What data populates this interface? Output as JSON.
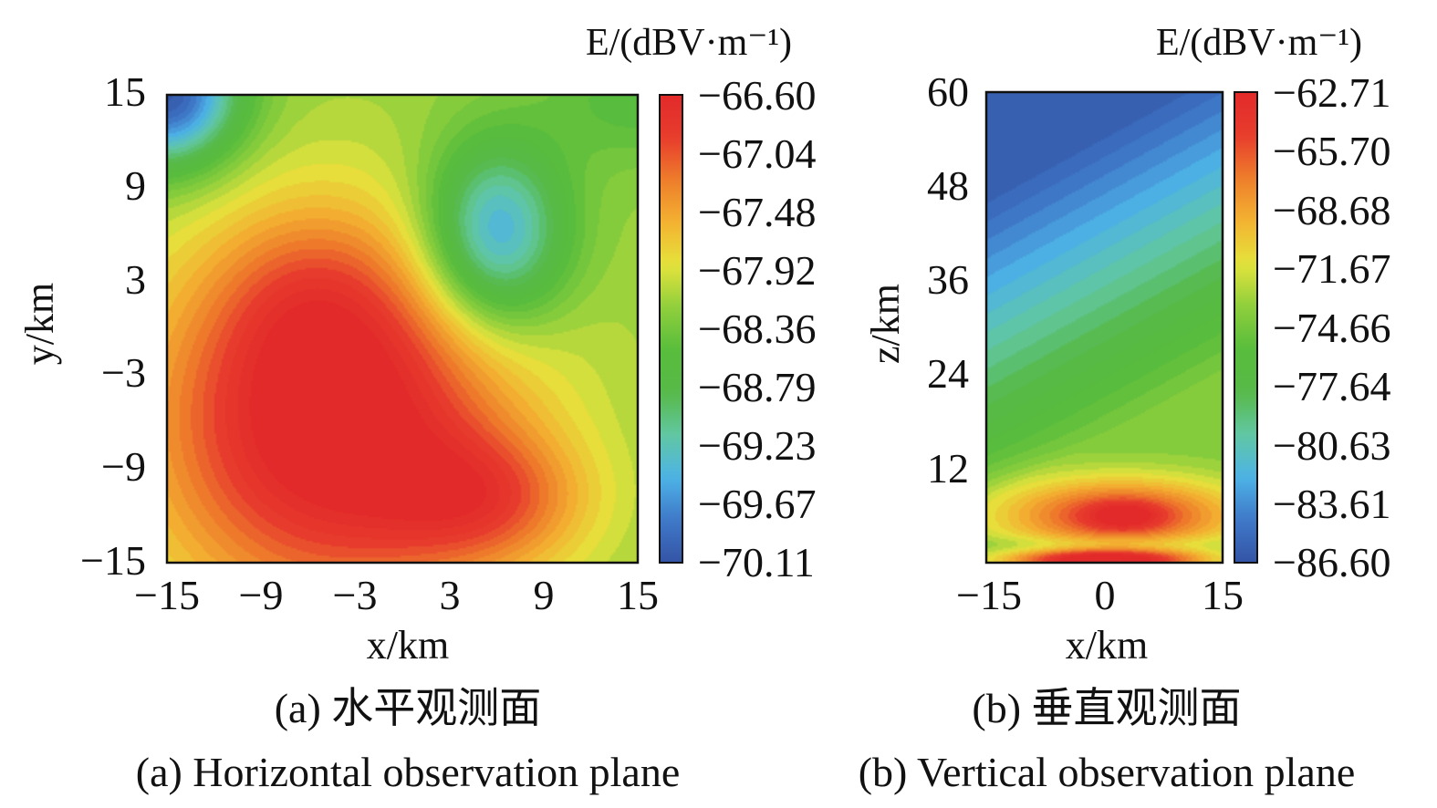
{
  "chart_data": [
    {
      "type": "heatmap",
      "panel": "a",
      "colorbar_title": "E/(dBV·m⁻¹)",
      "colorbar_ticks": [
        "−66.60",
        "−67.04",
        "−67.48",
        "−67.92",
        "−68.36",
        "−68.79",
        "−69.23",
        "−69.67",
        "−70.11"
      ],
      "crange": [
        -70.11,
        -66.6
      ],
      "xlabel": "x/km",
      "ylabel": "y/km",
      "xlim": [
        -15,
        15
      ],
      "ylim": [
        -15,
        15
      ],
      "xticks": [
        "−15",
        "−9",
        "−3",
        "3",
        "9",
        "15"
      ],
      "yticks": [
        "15",
        "9",
        "3",
        "−3",
        "−9",
        "−15"
      ],
      "features": [
        {
          "kind": "maximum",
          "x": -4.5,
          "y": -6.5,
          "value": -66.6
        },
        {
          "kind": "minimum",
          "x": 6,
          "y": 6,
          "value": -69.8
        },
        {
          "kind": "minimum",
          "x": -15,
          "y": 15,
          "value": -70.11
        }
      ],
      "caption_cn": "(a) 水平观测面",
      "caption_en": "(a) Horizontal observation plane"
    },
    {
      "type": "heatmap",
      "panel": "b",
      "colorbar_title": "E/(dBV·m⁻¹)",
      "colorbar_ticks": [
        "−62.71",
        "−65.70",
        "−68.68",
        "−71.67",
        "−74.66",
        "−77.64",
        "−80.63",
        "−83.61",
        "−86.60"
      ],
      "crange": [
        -86.6,
        -62.71
      ],
      "xlabel": "x/km",
      "ylabel": "z/km",
      "xlim": [
        -15,
        15
      ],
      "ylim": [
        0,
        60
      ],
      "xticks": [
        "−15",
        "0",
        "15"
      ],
      "yticks": [
        "60",
        "48",
        "36",
        "24",
        "12"
      ],
      "features": [
        {
          "kind": "maximum",
          "x": 0,
          "z": 0,
          "value": -62.71
        },
        {
          "kind": "maximum",
          "x": 2.5,
          "z": 6,
          "value": -66.0
        },
        {
          "kind": "minimum",
          "x": -15,
          "z": 60,
          "value": -86.6
        }
      ],
      "caption_cn": "(b) 垂直观测面",
      "caption_en": "(b) Vertical observation plane"
    }
  ],
  "colormap": [
    "#3454a6",
    "#3f78c8",
    "#4db3e6",
    "#61c7a3",
    "#57b947",
    "#58bd3c",
    "#8fcf3c",
    "#e5e33c",
    "#f3b231",
    "#ee7d2b",
    "#e73c2d",
    "#e32a2a"
  ]
}
